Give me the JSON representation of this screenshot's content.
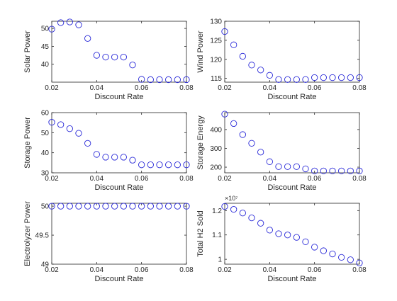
{
  "marker_color": "#2a2ad8",
  "axis_color": "#262626",
  "chart_data": [
    {
      "type": "scatter",
      "xlabel": "Discount Rate",
      "ylabel": "Solar Power",
      "xlim": [
        0.02,
        0.08
      ],
      "ylim": [
        35,
        52
      ],
      "xticks": [
        "0.02",
        "0.04",
        "0.06",
        "0.08"
      ],
      "yticks": [
        "40",
        "45",
        "50"
      ],
      "ytick_values": [
        40,
        45,
        50
      ],
      "exponent": "",
      "x": [
        0.02,
        0.024,
        0.028,
        0.032,
        0.036,
        0.04,
        0.044,
        0.048,
        0.052,
        0.056,
        0.06,
        0.064,
        0.068,
        0.072,
        0.076,
        0.08
      ],
      "y": [
        49.8,
        51.6,
        51.8,
        51.0,
        47.2,
        42.5,
        42.0,
        42.0,
        42.0,
        39.8,
        35.8,
        35.7,
        35.7,
        35.7,
        35.7,
        35.7
      ]
    },
    {
      "type": "scatter",
      "xlabel": "Discount Rate",
      "ylabel": "Wind Power",
      "xlim": [
        0.02,
        0.08
      ],
      "ylim": [
        114,
        130
      ],
      "xticks": [
        "0.02",
        "0.04",
        "0.06",
        "0.08"
      ],
      "yticks": [
        "115",
        "120",
        "125",
        "130"
      ],
      "ytick_values": [
        115,
        120,
        125,
        130
      ],
      "exponent": "",
      "x": [
        0.02,
        0.024,
        0.028,
        0.032,
        0.036,
        0.04,
        0.044,
        0.048,
        0.052,
        0.056,
        0.06,
        0.064,
        0.068,
        0.072,
        0.076,
        0.08
      ],
      "y": [
        127.3,
        123.8,
        120.8,
        118.5,
        117.2,
        115.8,
        114.7,
        114.7,
        114.7,
        114.7,
        115.2,
        115.2,
        115.2,
        115.2,
        115.2,
        115.2
      ]
    },
    {
      "type": "scatter",
      "xlabel": "Discount Rate",
      "ylabel": "Storage Power",
      "xlim": [
        0.02,
        0.08
      ],
      "ylim": [
        30,
        60
      ],
      "xticks": [
        "0.02",
        "0.04",
        "0.06",
        "0.08"
      ],
      "yticks": [
        "30",
        "40",
        "50",
        "60"
      ],
      "ytick_values": [
        30,
        40,
        50,
        60
      ],
      "exponent": "",
      "x": [
        0.02,
        0.024,
        0.028,
        0.032,
        0.036,
        0.04,
        0.044,
        0.048,
        0.052,
        0.056,
        0.06,
        0.064,
        0.068,
        0.072,
        0.076,
        0.08
      ],
      "y": [
        55.2,
        54.0,
        52.0,
        49.7,
        44.7,
        39.2,
        37.8,
        37.8,
        37.8,
        36.3,
        34.0,
        34.0,
        34.0,
        34.0,
        34.0,
        34.0
      ]
    },
    {
      "type": "scatter",
      "xlabel": "Discount Rate",
      "ylabel": "Storage Energy",
      "xlim": [
        0.02,
        0.08
      ],
      "ylim": [
        170,
        490
      ],
      "xticks": [
        "0.02",
        "0.04",
        "0.06",
        "0.08"
      ],
      "yticks": [
        "200",
        "300",
        "400"
      ],
      "ytick_values": [
        200,
        300,
        400
      ],
      "exponent": "",
      "x": [
        0.02,
        0.024,
        0.028,
        0.032,
        0.036,
        0.04,
        0.044,
        0.048,
        0.052,
        0.056,
        0.06,
        0.064,
        0.068,
        0.072,
        0.076,
        0.08
      ],
      "y": [
        482,
        432,
        373,
        327,
        280,
        229,
        203,
        203,
        203,
        191,
        180,
        180,
        180,
        180,
        180,
        180
      ]
    },
    {
      "type": "scatter",
      "xlabel": "Discount Rate",
      "ylabel": "Electrolyzer Power",
      "xlim": [
        0.02,
        0.08
      ],
      "ylim": [
        49,
        50.05
      ],
      "xticks": [
        "0.02",
        "0.04",
        "0.06",
        "0.08"
      ],
      "yticks": [
        "49",
        "49.5",
        "50"
      ],
      "ytick_values": [
        49,
        49.5,
        50
      ],
      "exponent": "",
      "x": [
        0.02,
        0.024,
        0.028,
        0.032,
        0.036,
        0.04,
        0.044,
        0.048,
        0.052,
        0.056,
        0.06,
        0.064,
        0.068,
        0.072,
        0.076,
        0.08
      ],
      "y": [
        50,
        50,
        50,
        50,
        50,
        50,
        50,
        50,
        50,
        50,
        50,
        50,
        50,
        50,
        50,
        50
      ]
    },
    {
      "type": "scatter",
      "xlabel": "Discount Rate",
      "ylabel": "Total H2 Sold",
      "xlim": [
        0.02,
        0.08
      ],
      "ylim": [
        0.98,
        1.23
      ],
      "xticks": [
        "0.02",
        "0.04",
        "0.06",
        "0.08"
      ],
      "yticks": [
        "1",
        "1.1",
        "1.2"
      ],
      "ytick_values": [
        1.0,
        1.1,
        1.2
      ],
      "exponent": "×10⁷",
      "x": [
        0.02,
        0.024,
        0.028,
        0.032,
        0.036,
        0.04,
        0.044,
        0.048,
        0.052,
        0.056,
        0.06,
        0.064,
        0.068,
        0.072,
        0.076,
        0.08
      ],
      "y": [
        1.217,
        1.205,
        1.19,
        1.17,
        1.148,
        1.12,
        1.105,
        1.1,
        1.09,
        1.072,
        1.05,
        1.035,
        1.022,
        1.008,
        0.998,
        0.985
      ]
    }
  ]
}
